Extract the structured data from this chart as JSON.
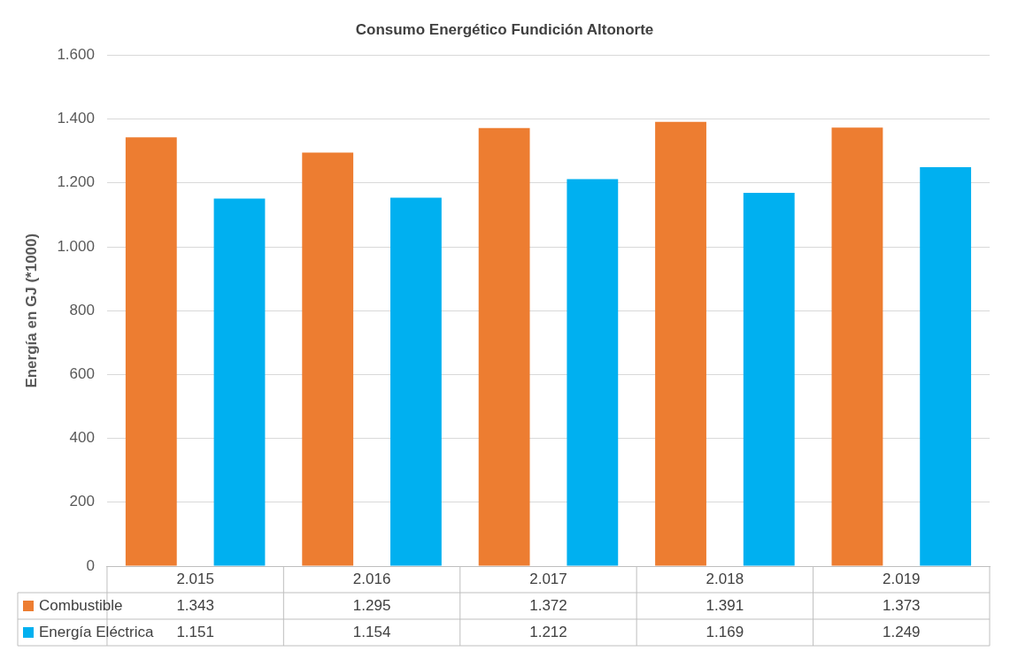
{
  "chart_data": {
    "type": "bar",
    "title": "Consumo Energético Fundición Altonorte",
    "ylabel": "Energía en GJ (*1000)",
    "categories": [
      "2.015",
      "2.016",
      "2.017",
      "2.018",
      "2.019"
    ],
    "series": [
      {
        "name": "Combustible",
        "color": "#ed7d31",
        "values": [
          1343,
          1295,
          1372,
          1391,
          1373
        ],
        "value_labels": [
          "1.343",
          "1.295",
          "1.372",
          "1.391",
          "1.373"
        ]
      },
      {
        "name": "Energía Eléctrica",
        "color": "#00b0f0",
        "values": [
          1151,
          1154,
          1212,
          1169,
          1249
        ],
        "value_labels": [
          "1.151",
          "1.154",
          "1.212",
          "1.169",
          "1.249"
        ]
      }
    ],
    "ylim": [
      0,
      1600
    ],
    "yticks": [
      0,
      {
        "value": 200,
        "label": "200"
      },
      {
        "value": 400,
        "label": "400"
      },
      {
        "value": 600,
        "label": "600"
      },
      {
        "value": 800,
        "label": "800"
      },
      {
        "value": 1000,
        "label": "1.000"
      },
      {
        "value": 1200,
        "label": "1.200"
      },
      {
        "value": 1400,
        "label": "1.400"
      },
      {
        "value": 1600,
        "label": "1.600"
      }
    ],
    "grid": "y",
    "legend": "bottom"
  }
}
